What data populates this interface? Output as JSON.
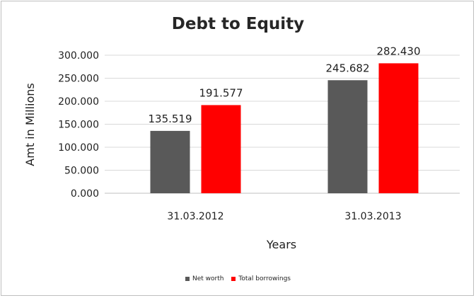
{
  "chart_data": {
    "type": "bar",
    "title": "Debt to Equity",
    "xlabel": "Years",
    "ylabel": "Amt in Millions",
    "categories": [
      "31.03.2012",
      "31.03.2013"
    ],
    "series": [
      {
        "name": "Net worth",
        "color": "#595959",
        "values": [
          135.519,
          245.682
        ],
        "labels": [
          "135.519",
          "245.682"
        ]
      },
      {
        "name": "Total borrowings",
        "color": "#ff0000",
        "values": [
          191.577,
          282.43
        ],
        "labels": [
          "191.577",
          "282.430"
        ]
      }
    ],
    "ylim": [
      0,
      300
    ],
    "yticks": [
      0,
      50,
      100,
      150,
      200,
      250,
      300
    ],
    "ytick_labels": [
      "0.000",
      "50.000",
      "100.000",
      "150.000",
      "200.000",
      "250.000",
      "300.000"
    ],
    "grid": true,
    "legend_position": "bottom"
  }
}
